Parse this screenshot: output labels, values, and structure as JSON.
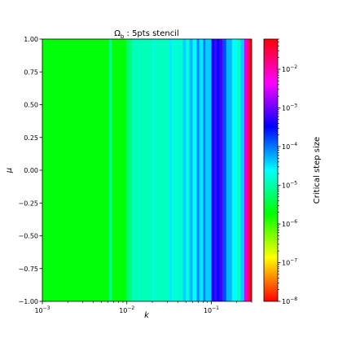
{
  "chart_data": {
    "type": "heatmap",
    "title_symbol": "Ω",
    "title_subscript": "b",
    "title_rest": " : 5pts stencil",
    "xlabel": "k",
    "ylabel": "μ",
    "xscale": "log",
    "xlim": [
      0.001,
      0.3
    ],
    "ylim": [
      -1.0,
      1.0
    ],
    "xticks": [
      {
        "value": 0.001,
        "base": "10",
        "exp": "−3"
      },
      {
        "value": 0.01,
        "base": "10",
        "exp": "−2"
      },
      {
        "value": 0.1,
        "base": "10",
        "exp": "−1"
      }
    ],
    "yticks": [
      {
        "value": 1.0,
        "label": "1.00"
      },
      {
        "value": 0.75,
        "label": "0.75"
      },
      {
        "value": 0.5,
        "label": "0.50"
      },
      {
        "value": 0.25,
        "label": "0.25"
      },
      {
        "value": 0.0,
        "label": "0.00"
      },
      {
        "value": -0.25,
        "label": "−0.25"
      },
      {
        "value": -0.5,
        "label": "−0.50"
      },
      {
        "value": -0.75,
        "label": "−0.75"
      },
      {
        "value": -1.0,
        "label": "−1.00"
      }
    ],
    "colorbar": {
      "label": "Critical step size",
      "scale": "log",
      "colormap": "hsv",
      "range": [
        1e-08,
        0.06
      ],
      "ticks": [
        {
          "value": 1e-08,
          "base": "10",
          "exp": "−8"
        },
        {
          "value": 1e-07,
          "base": "10",
          "exp": "−7"
        },
        {
          "value": 1e-06,
          "base": "10",
          "exp": "−6"
        },
        {
          "value": 1e-05,
          "base": "10",
          "exp": "−5"
        },
        {
          "value": 0.0001,
          "base": "10",
          "exp": "−4"
        },
        {
          "value": 0.001,
          "base": "10",
          "exp": "−3"
        },
        {
          "value": 0.01,
          "base": "10",
          "exp": "−2"
        }
      ]
    },
    "bands": [
      {
        "k_from": 0.001,
        "k_to": 0.0062,
        "value": 2e-06
      },
      {
        "k_from": 0.0062,
        "k_to": 0.0066,
        "value": 8e-06
      },
      {
        "k_from": 0.0066,
        "k_to": 0.0098,
        "value": 2e-06
      },
      {
        "k_from": 0.0098,
        "k_to": 0.0115,
        "value": 6e-06
      },
      {
        "k_from": 0.0115,
        "k_to": 0.02,
        "value": 1.2e-05
      },
      {
        "k_from": 0.02,
        "k_to": 0.021,
        "value": 2e-05
      },
      {
        "k_from": 0.021,
        "k_to": 0.032,
        "value": 1.3e-05
      },
      {
        "k_from": 0.032,
        "k_to": 0.034,
        "value": 3e-05
      },
      {
        "k_from": 0.034,
        "k_to": 0.046,
        "value": 1.6e-05
      },
      {
        "k_from": 0.046,
        "k_to": 0.05,
        "value": 4e-05
      },
      {
        "k_from": 0.05,
        "k_to": 0.055,
        "value": 1.8e-05
      },
      {
        "k_from": 0.055,
        "k_to": 0.06,
        "value": 5e-05
      },
      {
        "k_from": 0.06,
        "k_to": 0.067,
        "value": 2.5e-05
      },
      {
        "k_from": 0.067,
        "k_to": 0.072,
        "value": 8e-05
      },
      {
        "k_from": 0.072,
        "k_to": 0.08,
        "value": 3e-05
      },
      {
        "k_from": 0.08,
        "k_to": 0.085,
        "value": 0.0001
      },
      {
        "k_from": 0.085,
        "k_to": 0.1,
        "value": 4e-05
      },
      {
        "k_from": 0.1,
        "k_to": 0.108,
        "value": 0.0003
      },
      {
        "k_from": 0.108,
        "k_to": 0.116,
        "value": 0.0007
      },
      {
        "k_from": 0.116,
        "k_to": 0.125,
        "value": 0.0003
      },
      {
        "k_from": 0.125,
        "k_to": 0.135,
        "value": 0.0006
      },
      {
        "k_from": 0.135,
        "k_to": 0.15,
        "value": 0.00015
      },
      {
        "k_from": 0.15,
        "k_to": 0.175,
        "value": 5e-05
      },
      {
        "k_from": 0.175,
        "k_to": 0.2,
        "value": 2.5e-05
      },
      {
        "k_from": 0.2,
        "k_to": 0.22,
        "value": 1.5e-05
      },
      {
        "k_from": 0.22,
        "k_to": 0.245,
        "value": 4e-05
      },
      {
        "k_from": 0.245,
        "k_to": 0.26,
        "value": 0.003
      },
      {
        "k_from": 0.26,
        "k_to": 0.275,
        "value": 0.015
      },
      {
        "k_from": 0.275,
        "k_to": 0.3,
        "value": 0.05
      }
    ]
  }
}
